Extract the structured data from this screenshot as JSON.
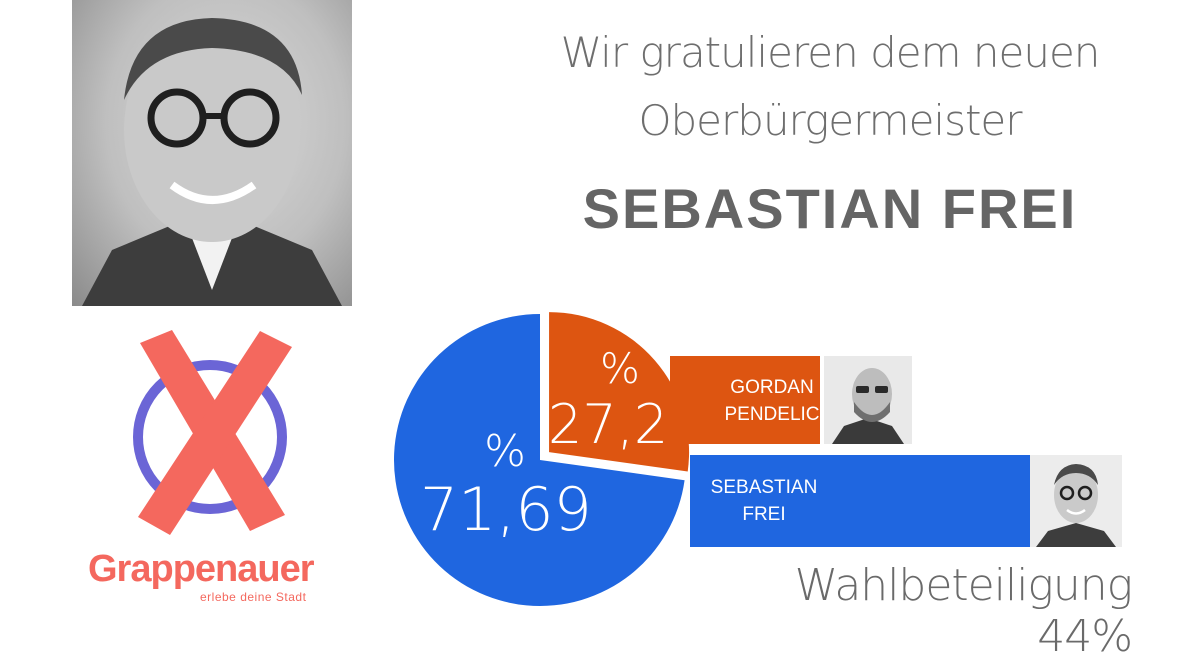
{
  "header": {
    "line1": "Wir gratulieren dem neuen",
    "line2": "Oberbürgermeister",
    "winner_name": "SEBASTIAN FREI"
  },
  "logo": {
    "brand": "Grappenauer",
    "tagline": "erlebe deine Stadt"
  },
  "footer": {
    "turnout": "Wahlbeteiligung 44%"
  },
  "colors": {
    "blue": "#1f66e0",
    "orange": "#dd5511",
    "headline_grey": "#6e6e6e",
    "logo_red": "#f4685e",
    "logo_circle": "#6b65d6"
  },
  "chart_data": {
    "type": "pie",
    "title": "",
    "slices": [
      {
        "name": "SEBASTIAN FREI",
        "value": 71.69,
        "label_pct": "%",
        "label_value": "71,69",
        "color": "#1f66e0"
      },
      {
        "name": "GORDAN PENDELIC",
        "value": 27.21,
        "label_pct": "%",
        "label_value": "27,21",
        "color": "#dd5511"
      }
    ],
    "bars": [
      {
        "line1": "GORDAN",
        "line2": "PENDELIC",
        "value": 27.21,
        "color": "#dd5511"
      },
      {
        "line1": "SEBASTIAN",
        "line2": "FREI",
        "value": 71.69,
        "color": "#1f66e0"
      }
    ]
  }
}
